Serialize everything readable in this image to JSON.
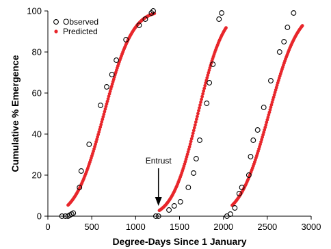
{
  "chart_data": {
    "type": "scatter",
    "title": "",
    "xlabel": "Degree-Days Since 1 January",
    "ylabel": "Cumulative % Emergence",
    "xlim": [
      0,
      3000
    ],
    "ylim": [
      0,
      100
    ],
    "xticks": [
      0,
      500,
      1000,
      1500,
      2000,
      2500,
      3000
    ],
    "yticks": [
      0,
      20,
      40,
      60,
      80,
      100
    ],
    "grid": false,
    "legend_position": "top-left",
    "colors": {
      "observed": "#000000",
      "predicted": "#e8262b"
    },
    "series": [
      {
        "name": "Observed",
        "marker": "open-circle",
        "segments": [
          [
            [
              160,
              0
            ],
            [
              200,
              0
            ],
            [
              230,
              0
            ],
            [
              250,
              0.5
            ],
            [
              270,
              1
            ],
            [
              290,
              1.5
            ],
            [
              360,
              14
            ],
            [
              380,
              22
            ],
            [
              470,
              35
            ],
            [
              600,
              54
            ],
            [
              670,
              63
            ],
            [
              730,
              69
            ],
            [
              780,
              76
            ],
            [
              890,
              86
            ],
            [
              1040,
              93
            ],
            [
              1110,
              96
            ],
            [
              1180,
              99
            ],
            [
              1200,
              100
            ]
          ],
          [
            [
              1230,
              0
            ],
            [
              1260,
              0
            ],
            [
              1380,
              3
            ],
            [
              1440,
              5
            ],
            [
              1510,
              7
            ],
            [
              1600,
              14
            ],
            [
              1660,
              21
            ],
            [
              1690,
              28
            ],
            [
              1730,
              37
            ],
            [
              1810,
              55
            ],
            [
              1840,
              65
            ],
            [
              1880,
              74
            ],
            [
              1950,
              96
            ],
            [
              1980,
              99
            ]
          ],
          [
            [
              2040,
              0
            ],
            [
              2080,
              1
            ],
            [
              2130,
              4
            ],
            [
              2180,
              11
            ],
            [
              2210,
              14
            ],
            [
              2290,
              20
            ],
            [
              2310,
              29
            ],
            [
              2340,
              37
            ],
            [
              2390,
              42
            ],
            [
              2460,
              53
            ],
            [
              2540,
              66
            ],
            [
              2640,
              80
            ],
            [
              2690,
              85
            ],
            [
              2730,
              92
            ],
            [
              2800,
              99
            ]
          ]
        ]
      },
      {
        "name": "Predicted",
        "marker": "filled-circle",
        "curves": [
          {
            "x_start": 230,
            "x_end": 1220,
            "mu": 640,
            "sigma": 255
          },
          {
            "x_start": 1270,
            "x_end": 2030,
            "mu": 1710,
            "sigma": 230
          },
          {
            "x_start": 2100,
            "x_end": 2900,
            "mu": 2520,
            "sigma": 260
          }
        ]
      }
    ],
    "annotations": [
      {
        "text": "Entrust",
        "x": 1260,
        "y": 0
      }
    ]
  }
}
